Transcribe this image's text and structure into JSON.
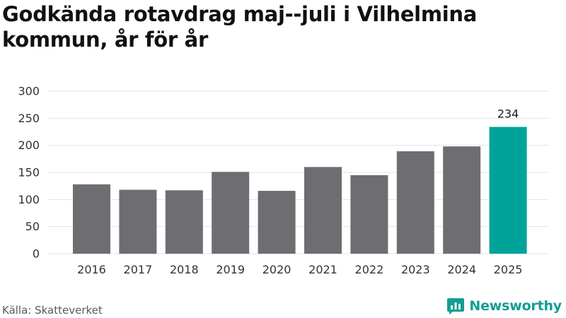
{
  "title": "Godkända rotavdrag maj--juli i Vilhelmina kommun, år för år",
  "source": "Källa: Skatteverket",
  "brand": {
    "name": "Newsworthy",
    "icon": "newsworthy-logo-icon"
  },
  "colors": {
    "bar": "#6e6d72",
    "highlight": "#00a39a",
    "grid": "#e3e3e3",
    "axis_text": "#333333"
  },
  "chart_data": {
    "type": "bar",
    "categories": [
      "2016",
      "2017",
      "2018",
      "2019",
      "2020",
      "2021",
      "2022",
      "2023",
      "2024",
      "2025"
    ],
    "values": [
      128,
      118,
      117,
      151,
      116,
      160,
      145,
      189,
      198,
      234
    ],
    "ylim": [
      0,
      300
    ],
    "yticks": [
      0,
      50,
      100,
      150,
      200,
      250,
      300
    ],
    "highlight_index": 9,
    "data_labels": [
      {
        "index": 9,
        "text": "234"
      }
    ],
    "grid": true,
    "legend": "none"
  }
}
